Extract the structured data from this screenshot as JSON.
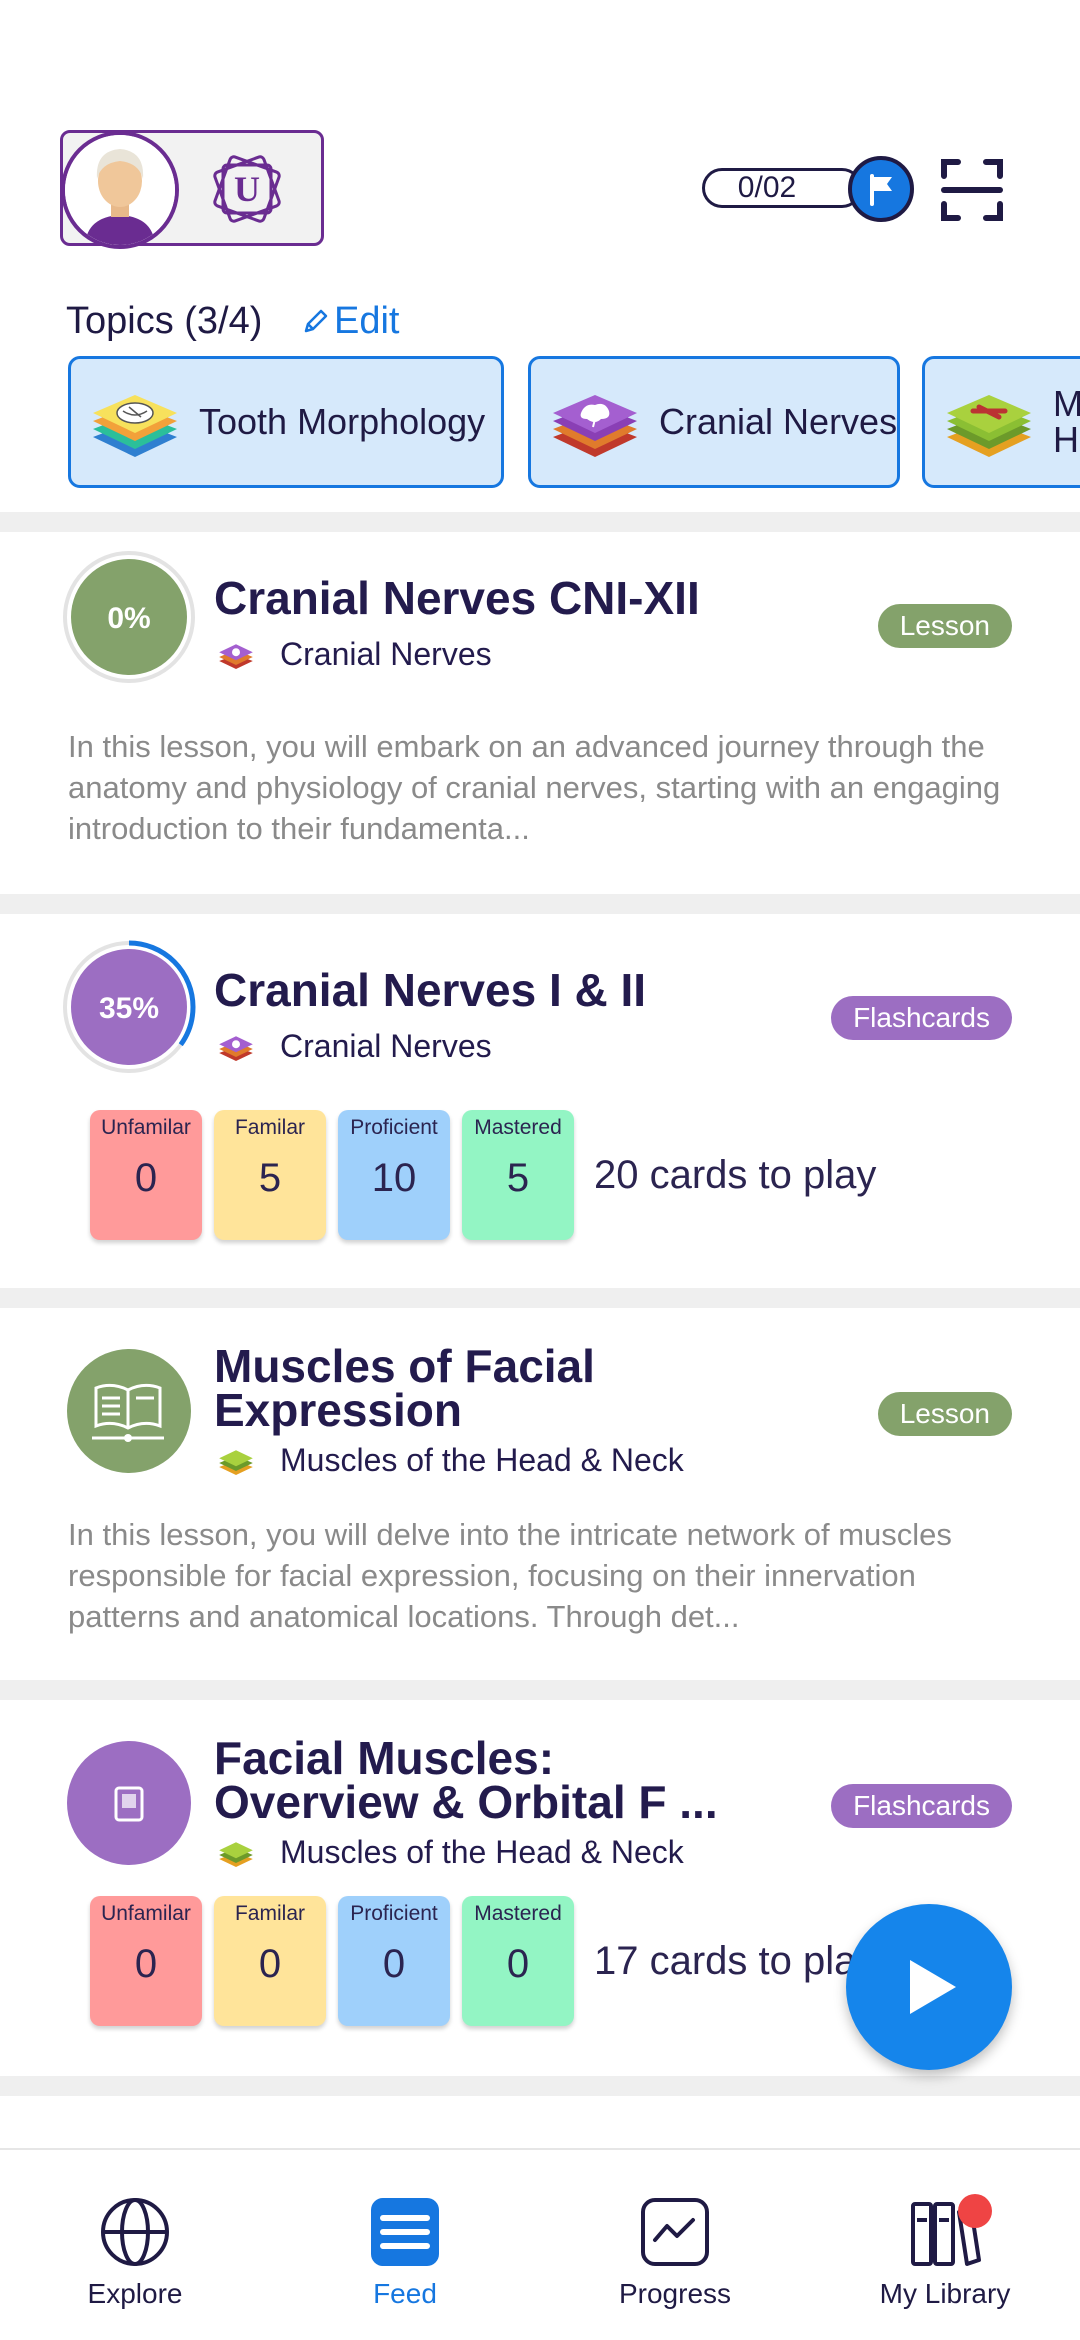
{
  "header": {
    "profile_monogram": "U",
    "streak": "0/02"
  },
  "topics": {
    "title": "Topics (3/4)",
    "edit_label": "Edit",
    "chips": [
      {
        "label": "Tooth Morphology"
      },
      {
        "label": "Cranial Nerves"
      },
      {
        "label_line1": "M",
        "label_line2": "H"
      }
    ]
  },
  "feed": [
    {
      "progress": "0%",
      "title": "Cranial Nerves CNI-XII",
      "subtopic": "Cranial Nerves",
      "type": "Lesson",
      "description": "In this lesson, you will embark on an advanced journey through the anatomy and physiology of cranial nerves, starting with an engaging introduction to their fundamenta..."
    },
    {
      "progress": "35%",
      "progress_value": 0.35,
      "title": "Cranial Nerves I & II",
      "subtopic": "Cranial Nerves",
      "type": "Flashcards",
      "stats": [
        {
          "label": "Unfamilar",
          "value": "0"
        },
        {
          "label": "Familar",
          "value": "5"
        },
        {
          "label": "Proficient",
          "value": "10"
        },
        {
          "label": "Mastered",
          "value": "5"
        }
      ],
      "cards_to_play": "20 cards to play"
    },
    {
      "title_line1": "Muscles of Facial",
      "title_line2": "Expression",
      "subtopic": "Muscles of the Head & Neck",
      "type": "Lesson",
      "description": "In this lesson, you will delve into the intricate network of muscles responsible for facial expression, focusing on their innervation patterns and anatomical locations. Through det..."
    },
    {
      "title_line1": "Facial Muscles:",
      "title_line2": "Overview & Orbital F ...",
      "subtopic": "Muscles of the Head & Neck",
      "type": "Flashcards",
      "stats": [
        {
          "label": "Unfamilar",
          "value": "0"
        },
        {
          "label": "Familar",
          "value": "0"
        },
        {
          "label": "Proficient",
          "value": "0"
        },
        {
          "label": "Mastered",
          "value": "0"
        }
      ],
      "cards_to_play": "17 cards to play"
    }
  ],
  "nav": {
    "items": [
      {
        "label": "Explore"
      },
      {
        "label": "Feed"
      },
      {
        "label": "Progress"
      },
      {
        "label": "My Library"
      }
    ]
  },
  "colors": {
    "accent": "#1677e0",
    "lesson": "#84a26b",
    "flashcards": "#9c6ec2",
    "unfamiliar": "#ff9a9a",
    "familiar": "#ffe49a",
    "proficient": "#9fd0fb",
    "mastered": "#93f5c4"
  }
}
